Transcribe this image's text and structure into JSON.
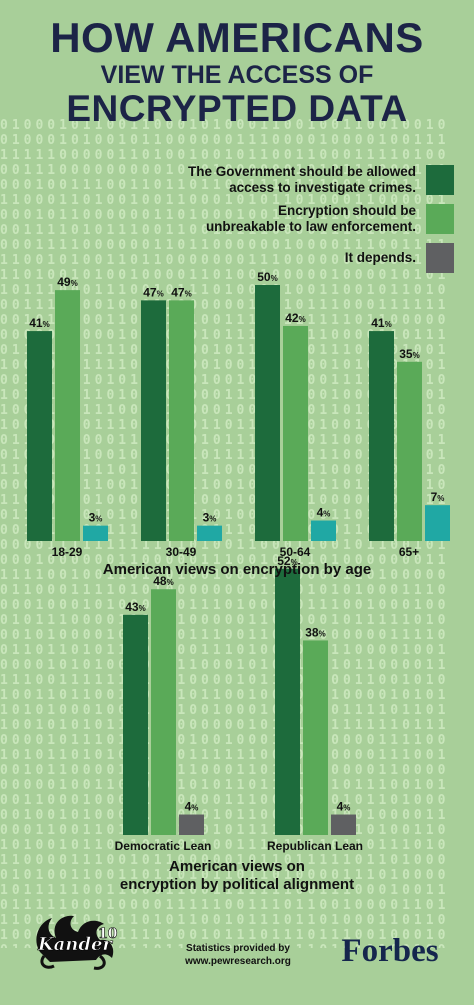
{
  "header": {
    "line1": "HOW AMERICANS",
    "line2": "VIEW THE ACCESS OF",
    "line3": "ENCRYPTED DATA"
  },
  "legend": [
    {
      "label_line1": "The Government should be allowed",
      "label_line2": "access to investigate crimes.",
      "color": "#1d6b3c"
    },
    {
      "label_line1": "Encryption should be",
      "label_line2": "unbreakable to law enforcement.",
      "color": "#5aaa58"
    },
    {
      "label_line1": "It depends.",
      "label_line2": "",
      "color": "#5f6062"
    }
  ],
  "chart_data": [
    {
      "type": "bar",
      "title": "American views on encryption by age",
      "categories": [
        "18-29",
        "30-49",
        "50-64",
        "65+"
      ],
      "series": [
        {
          "name": "The Government should be allowed access to investigate crimes.",
          "values": [
            41,
            47,
            50,
            41
          ],
          "color": "#1d6b3c"
        },
        {
          "name": "Encryption should be unbreakable to law enforcement.",
          "values": [
            49,
            47,
            42,
            35
          ],
          "color": "#5aaa58"
        },
        {
          "name": "It depends.",
          "values": [
            3,
            3,
            4,
            7
          ],
          "color": "#20a8a4"
        }
      ],
      "value_suffix": "%",
      "ylim": [
        0,
        55
      ],
      "grid": false,
      "legend": "top-right"
    },
    {
      "type": "bar",
      "title": "American views on encryption by political alignment",
      "categories": [
        "Democratic Lean",
        "Republican Lean"
      ],
      "series": [
        {
          "name": "The Government should be allowed access to investigate crimes.",
          "values": [
            43,
            52
          ],
          "color": "#1d6b3c"
        },
        {
          "name": "Encryption should be unbreakable to law enforcement.",
          "values": [
            48,
            38
          ],
          "color": "#5aaa58"
        },
        {
          "name": "It depends.",
          "values": [
            4,
            4
          ],
          "color": "#5f6062"
        }
      ],
      "value_suffix": "%",
      "ylim": [
        0,
        55
      ],
      "grid": false
    }
  ],
  "age_chart_title": "American views on encryption by age",
  "political_title_line1": "American views on",
  "political_title_line2": "encryption by political alignment",
  "footer": {
    "logo_text": "Kander",
    "logo_number": "10",
    "source_line1": "Statistics provided by",
    "source_line2": "www.pewresearch.org",
    "brand": "Forbes"
  }
}
